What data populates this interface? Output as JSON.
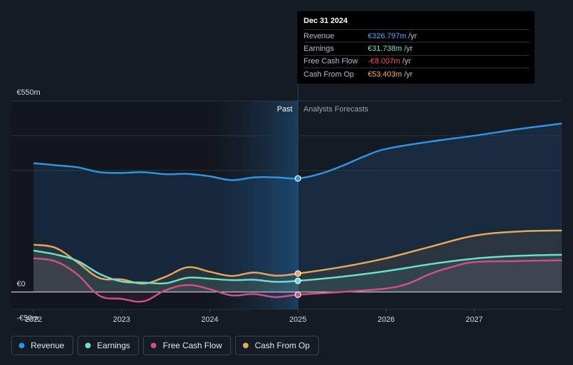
{
  "colors": {
    "revenue": "#2e95e6",
    "earnings": "#6de0c9",
    "free_cash_flow": "#d04f8b",
    "cash_from_op": "#e8a85a",
    "tt_revenue": "#4ba9ff",
    "tt_earnings": "#6de8cd",
    "tt_fcf": "#ff4c4c",
    "tt_cfo": "#f4ad5a"
  },
  "regions": {
    "past_label": "Past",
    "forecast_label": "Analysts Forecasts"
  },
  "tooltip": {
    "date": "Dec 31 2024",
    "rows": [
      {
        "label": "Revenue",
        "value": "€326.797m",
        "unit": "/yr"
      },
      {
        "label": "Earnings",
        "value": "€31.738m",
        "unit": "/yr"
      },
      {
        "label": "Free Cash Flow",
        "value": "-€8.007m",
        "unit": "/yr"
      },
      {
        "label": "Cash From Op",
        "value": "€53.403m",
        "unit": "/yr"
      }
    ]
  },
  "legend": [
    {
      "label": "Revenue",
      "icon": "revenue-dot-icon"
    },
    {
      "label": "Earnings",
      "icon": "earnings-dot-icon"
    },
    {
      "label": "Free Cash Flow",
      "icon": "free-cash-flow-dot-icon"
    },
    {
      "label": "Cash From Op",
      "icon": "cash-from-op-dot-icon"
    }
  ],
  "chart_data": {
    "type": "line",
    "title": "",
    "xlabel": "",
    "ylabel": "",
    "xlim": [
      2022.0,
      2028.0
    ],
    "ylim": [
      -50,
      550
    ],
    "y_tick_labels": [
      {
        "value": 550,
        "label": "€550m"
      },
      {
        "value": 0,
        "label": "€0"
      },
      {
        "value": -50,
        "label": "-€50m"
      }
    ],
    "x_ticks": [
      2022,
      2023,
      2024,
      2025,
      2026,
      2027
    ],
    "x_tick_labels": [
      "2022",
      "2023",
      "2024",
      "2025",
      "2026",
      "2027"
    ],
    "past_forecast_split": 2025.0,
    "series": [
      {
        "name": "Revenue",
        "key": "revenue",
        "x": [
          2022.0,
          2022.25,
          2022.5,
          2022.75,
          2023.0,
          2023.25,
          2023.5,
          2023.75,
          2024.0,
          2024.25,
          2024.5,
          2024.75,
          2025.0,
          2025.25,
          2025.5,
          2025.75,
          2026.0,
          2026.5,
          2027.0,
          2027.5,
          2028.0
        ],
        "values": [
          371,
          365,
          359,
          345,
          343,
          345,
          339,
          340,
          333,
          322,
          330,
          330,
          327,
          340,
          363,
          390,
          412,
          433,
          450,
          469,
          485
        ]
      },
      {
        "name": "Earnings",
        "key": "earnings",
        "x": [
          2022.0,
          2022.25,
          2022.5,
          2022.75,
          2023.0,
          2023.25,
          2023.5,
          2023.75,
          2024.0,
          2024.25,
          2024.5,
          2024.75,
          2025.0,
          2025.5,
          2026.0,
          2026.5,
          2027.0,
          2027.5,
          2028.0
        ],
        "values": [
          119,
          108,
          89,
          52,
          30,
          27,
          25,
          41,
          38,
          34,
          35,
          29,
          32,
          44,
          60,
          80,
          96,
          104,
          107
        ]
      },
      {
        "name": "Free Cash Flow",
        "key": "free_cash_flow",
        "x": [
          2022.0,
          2022.25,
          2022.5,
          2022.75,
          2023.0,
          2023.25,
          2023.5,
          2023.75,
          2024.0,
          2024.25,
          2024.5,
          2024.75,
          2025.0,
          2025.5,
          2026.0,
          2026.25,
          2026.5,
          2026.75,
          2027.0,
          2027.5,
          2028.0
        ],
        "values": [
          97,
          88,
          50,
          -11,
          -20,
          -27,
          5,
          20,
          8,
          -10,
          -6,
          -15,
          -8,
          0,
          10,
          24,
          52,
          72,
          86,
          89,
          91
        ]
      },
      {
        "name": "Cash From Op",
        "key": "cash_from_op",
        "x": [
          2022.0,
          2022.25,
          2022.5,
          2022.75,
          2023.0,
          2023.25,
          2023.5,
          2023.75,
          2024.0,
          2024.25,
          2024.5,
          2024.75,
          2025.0,
          2025.5,
          2026.0,
          2026.5,
          2027.0,
          2027.5,
          2028.0
        ],
        "values": [
          136,
          127,
          85,
          40,
          36,
          24,
          44,
          71,
          58,
          46,
          56,
          47,
          53,
          72,
          97,
          130,
          162,
          174,
          177
        ]
      }
    ],
    "markers_at": 2025.0
  }
}
